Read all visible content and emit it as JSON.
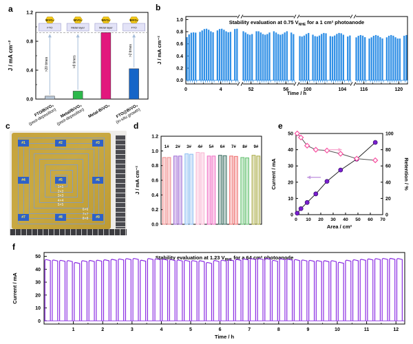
{
  "panel_labels": {
    "a": "a",
    "b": "b",
    "c": "c",
    "d": "d",
    "e": "e",
    "f": "f"
  },
  "chart_data": [
    {
      "id": "a",
      "type": "bar",
      "ylabel": "J / mA cm⁻²",
      "ylim": [
        0,
        1.2
      ],
      "yticks": [
        0.0,
        0.4,
        0.8,
        1.2
      ],
      "categories": [
        "FTO/BiVO₄|(post-deposition)",
        "Metal/BiVO₄|(post-deposition)",
        "Metal-BiVO₄|",
        "FTO@BiVO₄|(in-situ growth)"
      ],
      "values": [
        0.04,
        0.11,
        0.92,
        0.42
      ],
      "colors": [
        "#b9c8d8",
        "#2db84b",
        "#e2187d",
        "#1565c8"
      ],
      "reference_line": 0.92,
      "annotations": [
        {
          "bar": 0,
          "label": ">20 times"
        },
        {
          "bar": 1,
          "label": ">8 times"
        },
        {
          "bar": 3,
          "label": ">2 times"
        }
      ],
      "insets": [
        {
          "chip": "BiVO₄",
          "base": "FTO"
        },
        {
          "chip": "BiVO₄",
          "base": "Metal layer"
        },
        {
          "chip": "BiVO₄",
          "base": "Metal layer"
        },
        {
          "chip": "BiVO₄",
          "base": "FTO"
        }
      ]
    },
    {
      "id": "b",
      "type": "chopped-photocurrent",
      "title_pre": "Stability evaluation at 0.75 V",
      "title_sub": "NHE",
      "title_post": " for a 1 cm² photoanode",
      "ylabel": "J / mA cm⁻²",
      "xlabel": "Time / h",
      "ylim": [
        0,
        1.0
      ],
      "yticks": [
        0.0,
        0.2,
        0.4,
        0.6,
        0.8,
        1.0
      ],
      "color": "#2f8fe6",
      "pulses_per_segment": 24,
      "segments": [
        {
          "hours": [
            0,
            6
          ],
          "ticks": [
            0,
            4
          ],
          "level": 0.82
        },
        {
          "hours": [
            51,
            57
          ],
          "ticks": [
            52,
            56
          ],
          "level": 0.78
        },
        {
          "hours": [
            99,
            105
          ],
          "ticks": [
            100,
            104
          ],
          "level": 0.75
        },
        {
          "hours": [
            115,
            121
          ],
          "ticks": [
            116,
            120
          ],
          "level": 0.715
        }
      ]
    },
    {
      "id": "c",
      "type": "photo",
      "description": "Photograph of a large-area BiVO4 photoanode film with nested square areas and nine measurement spots",
      "spots": [
        "#1",
        "#2",
        "#3",
        "#4",
        "#5",
        "#6",
        "#7",
        "#8",
        "#9"
      ],
      "area_labels_center": [
        "1×1",
        "2×2",
        "3×3",
        "4×4",
        "5×5"
      ],
      "area_labels_corner": [
        "6×6",
        "7×7",
        "8×8"
      ]
    },
    {
      "id": "d",
      "type": "bar",
      "ylabel": "J / mA cm⁻²",
      "ylim": [
        0,
        1.2
      ],
      "yticks": [
        0.0,
        0.2,
        0.4,
        0.6,
        0.8,
        1.0,
        1.2
      ],
      "categories": [
        "1#",
        "2#",
        "3#",
        "4#",
        "5#",
        "6#",
        "7#",
        "8#",
        "9#"
      ],
      "series": [
        {
          "name": "bar1",
          "values": [
            0.91,
            0.93,
            0.96,
            0.98,
            0.93,
            0.94,
            0.93,
            0.91,
            0.94
          ]
        },
        {
          "name": "bar2",
          "values": [
            0.91,
            0.93,
            0.955,
            0.975,
            0.93,
            0.935,
            0.925,
            0.905,
            0.93
          ]
        }
      ],
      "colors": [
        "#f08a8a",
        "#a06cd5",
        "#8bbdf2",
        "#f8b3d0",
        "#f06ec4",
        "#3d6f63",
        "#ef6f6f",
        "#63c06f",
        "#a8aa45"
      ]
    },
    {
      "id": "e",
      "type": "scatter-line-dual-axis",
      "xlabel": "Area / cm²",
      "xlim": [
        0,
        70
      ],
      "xticks": [
        0,
        10,
        20,
        30,
        40,
        50,
        60,
        70
      ],
      "left_ylabel": "Current / mA",
      "left_ylim": [
        0,
        50
      ],
      "left_yticks": [
        0,
        10,
        20,
        30,
        40,
        50
      ],
      "right_ylabel": "Retention / %",
      "right_ylim": [
        0,
        100
      ],
      "right_yticks": [
        0,
        20,
        40,
        60,
        80,
        100
      ],
      "x": [
        1,
        4,
        9,
        16,
        25,
        36,
        49,
        64
      ],
      "current_mA": [
        0.9,
        3.7,
        7.5,
        12.8,
        20.5,
        27.5,
        34.2,
        44.5
      ],
      "retention_pct": [
        100,
        95,
        85,
        80,
        79,
        75,
        69,
        67
      ],
      "current_color": "#7a1fd0",
      "retention_color": "#f74fa0"
    },
    {
      "id": "f",
      "type": "chopped-photocurrent",
      "title_pre": "Stability evaluation at 1.23 V",
      "title_sub": "RHE",
      "title_post": " for a 64 cm² photoanode",
      "ylabel": "Current / mA",
      "xlabel": "Time / h",
      "ylim": [
        0,
        50
      ],
      "yticks": [
        0,
        10,
        20,
        30,
        40,
        50
      ],
      "xlim": [
        0,
        12.3
      ],
      "xticks": [
        1,
        2,
        3,
        4,
        5,
        6,
        7,
        8,
        9,
        10,
        11,
        12
      ],
      "color": "#8a2be2",
      "on_level": 47.5,
      "cycles": 49,
      "period_h": 0.25
    }
  ]
}
